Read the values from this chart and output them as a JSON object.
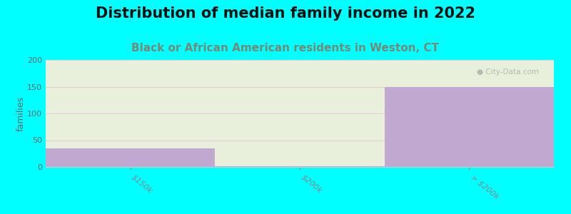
{
  "title": "Distribution of median family income in 2022",
  "subtitle": "Black or African American residents in Weston, CT",
  "categories": [
    "$150k",
    "$200k",
    "> $200k"
  ],
  "bar_values": [
    35,
    2,
    150
  ],
  "y_max": 200,
  "ylabel": "families",
  "bar_color": "#c0a8d0",
  "bg_bar_color": "#e8f0dc",
  "background_color": "#00ffff",
  "plot_bg_color": "#e8f0dc",
  "title_color": "#111111",
  "subtitle_color": "#778877",
  "grid_color": "#e8d0d8",
  "yticks": [
    0,
    50,
    100,
    150,
    200
  ],
  "title_fontsize": 15,
  "subtitle_fontsize": 11
}
